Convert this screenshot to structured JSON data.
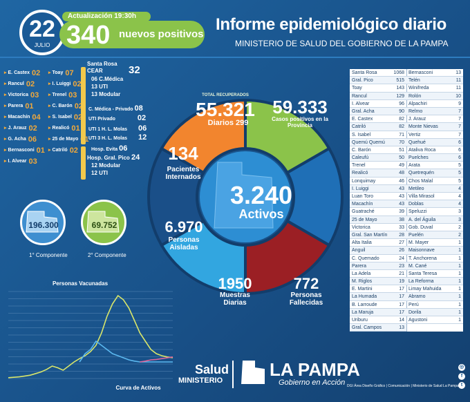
{
  "header": {
    "day": "22",
    "month": "JULIO",
    "update_label": "Actualización 19:30h",
    "positives_number": "340",
    "positives_label": "nuevos positivos",
    "title": "Informe epidemiológico diario",
    "subtitle": "MINISTERIO DE SALUD DEL GOBIERNO DE LA PAMPA"
  },
  "localities_left": [
    {
      "name": "E. Castex",
      "value": "02"
    },
    {
      "name": "Rancul",
      "value": "02"
    },
    {
      "name": "Victorica",
      "value": "03"
    },
    {
      "name": "Parera",
      "value": "01"
    },
    {
      "name": "Macachín",
      "value": "04"
    },
    {
      "name": "J. Arauz",
      "value": "02"
    },
    {
      "name": "G. Acha",
      "value": "06"
    },
    {
      "name": "Bernasconi",
      "value": "01"
    },
    {
      "name": "I. Alvear",
      "value": "03"
    }
  ],
  "localities_mid": [
    {
      "name": "Toay",
      "value": "07"
    },
    {
      "name": "I. Luiggi",
      "value": "02"
    },
    {
      "name": "Trenel",
      "value": "03"
    },
    {
      "name": "C. Barón",
      "value": "02"
    },
    {
      "name": "S. Isabel",
      "value": "02"
    },
    {
      "name": "Realicó",
      "value": "01"
    },
    {
      "name": "25 de Mayo",
      "value": "01"
    },
    {
      "name": "Catriló",
      "value": "02"
    }
  ],
  "hospitals": {
    "santa_rosa_label": "Santa Rosa",
    "cear_label": "CEAR",
    "cear_value": "32",
    "cear_cmedica": "06 C.Médica",
    "cear_uti": "13 UTI",
    "cear_modular": "13 Modular",
    "cmedica_privado_label": "C. Médica - Privado",
    "cmedica_privado_value": "08",
    "uti_privado_label": "UTI Privado",
    "uti_privado_value": "02",
    "uti1_label": "UTI 1 H. L. Molas",
    "uti1_value": "06",
    "uti3_label": "UTI 3 H. L. Molas",
    "uti3_value": "12",
    "evita_label": "Hosp. Evita",
    "evita_value": "06",
    "gral_pico_label": "Hosp. Gral. Pico",
    "gral_pico_value": "24",
    "gral_pico_modular": "12 Modular",
    "gral_pico_uti": "12 UTI"
  },
  "components": [
    {
      "value": "196.300",
      "label": "1° Componente"
    },
    {
      "value": "69.752",
      "label": "2° Componente"
    }
  ],
  "pie": {
    "recovered_label": "TOTAL RECUPERADOS",
    "recovered_value": "55.321",
    "recovered_daily_label": "Diarios",
    "recovered_daily": "299",
    "positive_cases_value": "59.333",
    "positive_cases_label": "Casos positivos en la Provincia",
    "hospitalized_value": "134",
    "hospitalized_label": "Pacientes Internados",
    "isolated_value": "6.970",
    "isolated_label": "Personas Aisladas",
    "samples_value": "1950",
    "samples_label": "Muestras Diarias",
    "deaths_value": "772",
    "deaths_label": "Personas Fallecidas",
    "active_value": "3.240",
    "active_label": "Activos",
    "colors": {
      "recovered": "#8bc34a",
      "positive": "#1f6fb6",
      "hospitalized": "#f2852e",
      "isolated": "#1a4f88",
      "samples": "#32a6e0",
      "deaths": "#9b1f24",
      "center": "#2d8ed3"
    }
  },
  "table": {
    "col1": [
      [
        "Santa Rosa",
        "1068"
      ],
      [
        "Gral. Pico",
        "515"
      ],
      [
        "Toay",
        "143"
      ],
      [
        "Rancul",
        "129"
      ],
      [
        "I. Alvear",
        "96"
      ],
      [
        "Gral. Acha",
        "90"
      ],
      [
        "E. Castex",
        "82"
      ],
      [
        "Catriló",
        "82"
      ],
      [
        "S. Isabel",
        "71"
      ],
      [
        "Quemú Quemú",
        "70"
      ],
      [
        "C. Barón",
        "51"
      ],
      [
        "Caleufú",
        "50"
      ],
      [
        "Trenel",
        "49"
      ],
      [
        "Realicó",
        "48"
      ],
      [
        "Lonquimay",
        "46"
      ],
      [
        "I. Luiggi",
        "43"
      ],
      [
        "Luan Toro",
        "43"
      ],
      [
        "Macachín",
        "43"
      ],
      [
        "Guatraché",
        "39"
      ],
      [
        "25 de Mayo",
        "38"
      ],
      [
        "Victorica",
        "33"
      ],
      [
        "Gral. San Martín",
        "28"
      ],
      [
        "Alta Italia",
        "27"
      ],
      [
        "Anguil",
        "26"
      ],
      [
        "C. Quemado",
        "24"
      ],
      [
        "Parera",
        "23"
      ],
      [
        "La Adela",
        "21"
      ],
      [
        "M. Riglos",
        "19"
      ],
      [
        "E. Martini",
        "17"
      ],
      [
        "La Humada",
        "17"
      ],
      [
        "B. Larroude",
        "17"
      ],
      [
        "La Maruja",
        "17"
      ],
      [
        "Uriburu",
        "14"
      ],
      [
        "Gral. Campos",
        "13"
      ]
    ],
    "col2": [
      [
        "Bernasconi",
        "13"
      ],
      [
        "Telén",
        "11"
      ],
      [
        "Winifreda",
        "11"
      ],
      [
        "Rolón",
        "10"
      ],
      [
        "Alpachiri",
        "9"
      ],
      [
        "Relmo",
        "7"
      ],
      [
        "J. Arauz",
        "7"
      ],
      [
        "Monte Nievas",
        "7"
      ],
      [
        "Vertiz",
        "7"
      ],
      [
        "Quehué",
        "6"
      ],
      [
        "Ataliva Roca",
        "6"
      ],
      [
        "Puelches",
        "6"
      ],
      [
        "Arata",
        "5"
      ],
      [
        "Quetrequén",
        "5"
      ],
      [
        "Chos Malal",
        "5"
      ],
      [
        "Metileo",
        "4"
      ],
      [
        "Villa Mirasol",
        "4"
      ],
      [
        "Doblas",
        "4"
      ],
      [
        "Speluzzi",
        "3"
      ],
      [
        "A. del Águila",
        "3"
      ],
      [
        "Gob. Duval",
        "2"
      ],
      [
        "Puelén",
        "2"
      ],
      [
        "M. Mayer",
        "1"
      ],
      [
        "Maisonnave",
        "1"
      ],
      [
        "T. Anchorena",
        "1"
      ],
      [
        "M. Cané",
        "1"
      ],
      [
        "Santa Teresa",
        "1"
      ],
      [
        "La Reforma",
        "1"
      ],
      [
        "Limay Mahuida",
        "1"
      ],
      [
        "Abramo",
        "1"
      ],
      [
        "Perú",
        "1"
      ],
      [
        "Dorila",
        "1"
      ],
      [
        "Agustoni",
        "1"
      ]
    ]
  },
  "chart_data": {
    "type": "line",
    "title": "Personas Vacunadas",
    "xlabel": "Curva de Activos",
    "ylabel": "",
    "note": "",
    "series": [
      {
        "color": "#ffffff",
        "values": [
          40,
          45,
          60,
          90,
          130,
          190,
          240,
          300,
          330,
          350,
          340,
          320,
          280,
          240,
          180,
          150,
          120,
          110,
          110,
          105,
          100,
          100,
          100,
          100
        ]
      },
      {
        "color": "#5bb8f0",
        "values": [
          null,
          null,
          null,
          null,
          null,
          null,
          null,
          null,
          null,
          null,
          null,
          null,
          null,
          null,
          null,
          null,
          null,
          20,
          40,
          60,
          90,
          120,
          140,
          150
        ]
      },
      {
        "color": "#d9e66a",
        "values": [
          null,
          null,
          null,
          null,
          null,
          null,
          null,
          null,
          null,
          null,
          null,
          null,
          null,
          null,
          null,
          null,
          null,
          null,
          null,
          null,
          null,
          null,
          null,
          null
        ]
      }
    ],
    "grid": true
  },
  "footer": {
    "salud": "Salud",
    "ministerio": "MINISTERIO",
    "la_pampa": "LA PAMPA",
    "gobierno": "Gobierno en Acción",
    "credit": "DGI Área Diseño Gráfico | Comunicación | Ministerio de Salud La Pampa"
  }
}
